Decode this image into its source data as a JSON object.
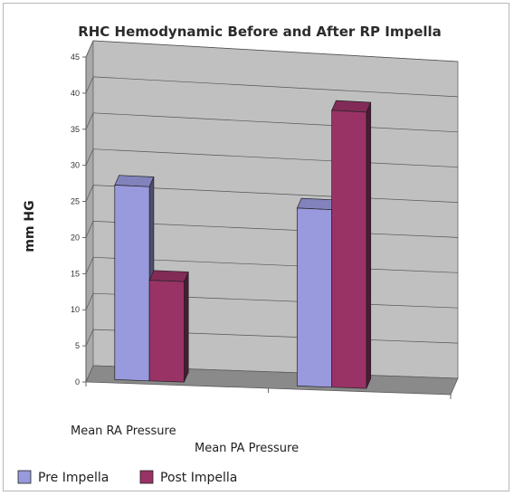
{
  "chart_data": {
    "type": "bar",
    "title": "RHC Hemodynamic Before and After RP Impella",
    "ylabel": "mm HG",
    "xlabel": "",
    "ylim": [
      0,
      45
    ],
    "yticks": [
      "0",
      "5",
      "10",
      "15",
      "20",
      "25",
      "30",
      "35",
      "40",
      "45"
    ],
    "categories": [
      "Mean RA Pressure",
      "Mean PA Pressure"
    ],
    "series": [
      {
        "name": "Pre Impella",
        "values": [
          27,
          25
        ],
        "color": "#9999dd"
      },
      {
        "name": "Post Impella",
        "values": [
          14,
          39
        ],
        "color": "#993366"
      }
    ],
    "grid": true,
    "legend_position": "bottom-left",
    "style": "3d-column"
  }
}
